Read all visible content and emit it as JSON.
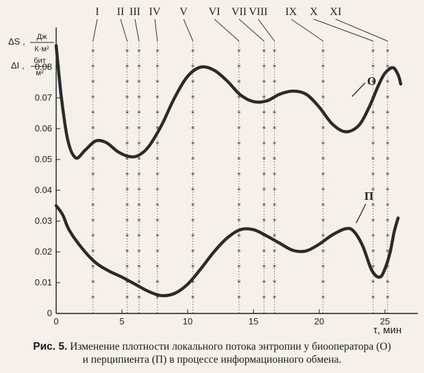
{
  "chart_data": {
    "type": "line",
    "title": "",
    "ylabel_top": {
      "prefix": "ΔS ,",
      "num": "Дж",
      "den": "К·м²"
    },
    "ylabel_bottom": {
      "prefix": "ΔI ,",
      "num": "бит",
      "den": "м²"
    },
    "xlabel": "τ, мин",
    "xlim": [
      0,
      27.5
    ],
    "ylim": [
      0,
      0.09
    ],
    "xticks": [
      0,
      5,
      10,
      15,
      20,
      25
    ],
    "yticks": [
      "0",
      "0.01",
      "0.02",
      "0.03",
      "0.04",
      "0.05",
      "0.06",
      "0.07",
      "0.08"
    ],
    "stages": [
      {
        "label": "I",
        "x": 2.8
      },
      {
        "label": "II",
        "x": 5.4
      },
      {
        "label": "III",
        "x": 6.3
      },
      {
        "label": "IV",
        "x": 7.7
      },
      {
        "label": "V",
        "x": 10.4
      },
      {
        "label": "VI",
        "x": 13.9
      },
      {
        "label": "VII",
        "x": 15.8
      },
      {
        "label": "VIII",
        "x": 16.6
      },
      {
        "label": "IX",
        "x": 20.3
      },
      {
        "label": "X",
        "x": 24.1
      },
      {
        "label": "XI",
        "x": 25.2
      }
    ],
    "series": [
      {
        "name": "О",
        "x": [
          0,
          0.4,
          0.9,
          1.5,
          2.2,
          3.0,
          3.8,
          4.7,
          5.5,
          6.2,
          7.0,
          8.0,
          9.0,
          10.0,
          11.0,
          12.0,
          13.0,
          14.0,
          15.0,
          16.0,
          17.0,
          18.0,
          19.0,
          20.0,
          21.0,
          22.0,
          23.0,
          23.8,
          24.5,
          25.0,
          25.6,
          26.0,
          26.2
        ],
        "values": [
          0.087,
          0.07,
          0.056,
          0.0505,
          0.053,
          0.056,
          0.0555,
          0.0525,
          0.051,
          0.0512,
          0.054,
          0.061,
          0.07,
          0.077,
          0.08,
          0.079,
          0.0755,
          0.071,
          0.0688,
          0.069,
          0.0712,
          0.0722,
          0.0712,
          0.067,
          0.0615,
          0.059,
          0.061,
          0.067,
          0.074,
          0.078,
          0.0798,
          0.0775,
          0.0745
        ]
      },
      {
        "name": "П",
        "x": [
          0,
          0.5,
          1.0,
          2.0,
          3.0,
          4.0,
          5.0,
          6.0,
          7.0,
          8.0,
          9.0,
          10.0,
          11.0,
          12.0,
          13.0,
          14.0,
          15.0,
          16.0,
          17.0,
          18.0,
          19.0,
          20.0,
          21.0,
          22.0,
          22.6,
          23.3,
          24.0,
          24.6,
          25.0,
          25.4,
          25.7,
          26.0
        ],
        "values": [
          0.035,
          0.032,
          0.027,
          0.021,
          0.0165,
          0.0138,
          0.0118,
          0.0095,
          0.0072,
          0.0058,
          0.0065,
          0.0095,
          0.0145,
          0.02,
          0.0245,
          0.0272,
          0.0272,
          0.0252,
          0.0228,
          0.0205,
          0.0203,
          0.0225,
          0.0255,
          0.0275,
          0.0268,
          0.022,
          0.014,
          0.0118,
          0.0145,
          0.02,
          0.0265,
          0.031
        ]
      }
    ],
    "grid": "vertical dotted lines with asterisk markers at stage times"
  },
  "caption": {
    "fig_num": "Рис. 5.",
    "line1": "Изменение плотности локального потока энтропии у биооператора (О)",
    "line2": "и перципиента (П) в процессе информационного обмена."
  },
  "colors": {
    "curve": "#2b2b2b",
    "axis": "#1a1a1a",
    "paper": "#f4f1ea"
  }
}
